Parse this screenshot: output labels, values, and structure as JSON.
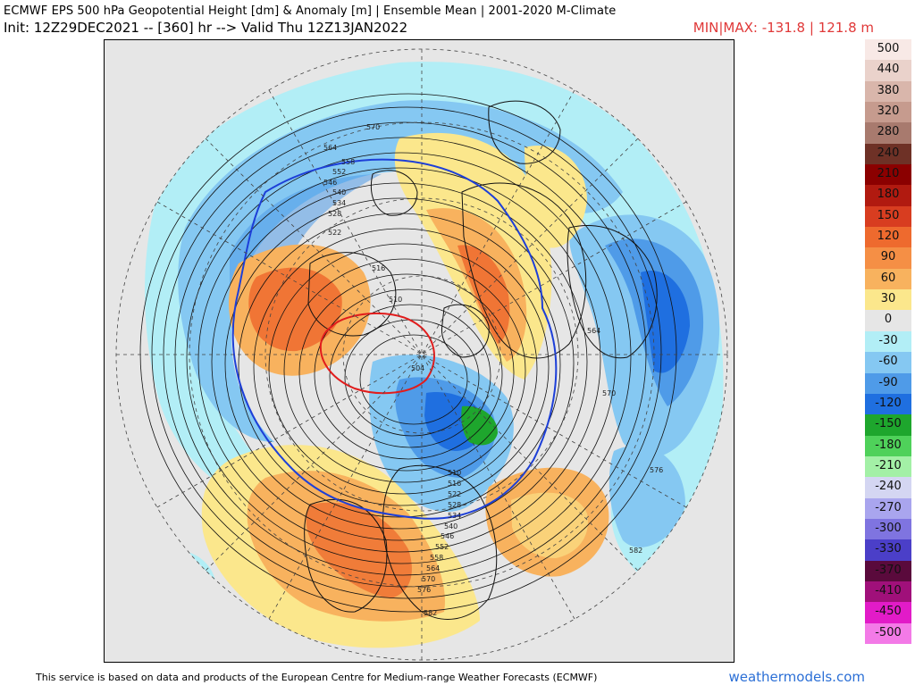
{
  "header": {
    "title": "ECMWF EPS 500 hPa Geopotential Height [dm] & Anomaly [m] | Ensemble Mean | 2001-2020 M-Climate",
    "subtitle": "Init: 12Z29DEC2021 -- [360] hr --> Valid Thu 12Z13JAN2022",
    "minmax": "MIN|MAX: -131.8 | 121.8 m"
  },
  "legend": [
    {
      "label": "500",
      "color": "#f8e9e6"
    },
    {
      "label": "440",
      "color": "#ead2cb"
    },
    {
      "label": "380",
      "color": "#d9b6ab"
    },
    {
      "label": "320",
      "color": "#c69b8e"
    },
    {
      "label": "280",
      "color": "#a87a6e"
    },
    {
      "label": "240",
      "color": "#6e3126"
    },
    {
      "label": "210",
      "color": "#8b0000"
    },
    {
      "label": "180",
      "color": "#b11a10"
    },
    {
      "label": "150",
      "color": "#d83d20"
    },
    {
      "label": "120",
      "color": "#ee6a2e"
    },
    {
      "label": "90",
      "color": "#f58f45"
    },
    {
      "label": "60",
      "color": "#f8b25e"
    },
    {
      "label": "30",
      "color": "#fbe78c"
    },
    {
      "label": "0",
      "color": "#e6e6e6"
    },
    {
      "label": "-30",
      "color": "#b2eef6"
    },
    {
      "label": "-60",
      "color": "#85c8f2"
    },
    {
      "label": "-90",
      "color": "#4f9be8"
    },
    {
      "label": "-120",
      "color": "#1f6fe0"
    },
    {
      "label": "-150",
      "color": "#1ea62d"
    },
    {
      "label": "-180",
      "color": "#4fd15a"
    },
    {
      "label": "-210",
      "color": "#a3f0a6"
    },
    {
      "label": "-240",
      "color": "#d4d6f2"
    },
    {
      "label": "-270",
      "color": "#a9a5ee"
    },
    {
      "label": "-300",
      "color": "#7f74e0"
    },
    {
      "label": "-330",
      "color": "#4b3fc8"
    },
    {
      "label": "-370",
      "color": "#5a0a3c"
    },
    {
      "label": "-410",
      "color": "#a0107a"
    },
    {
      "label": "-450",
      "color": "#e21bc8"
    },
    {
      "label": "-500",
      "color": "#f37ae7"
    }
  ],
  "contour_labels": [
    "570",
    "564",
    "558",
    "552",
    "546",
    "540",
    "534",
    "528",
    "522",
    "516",
    "510",
    "504",
    "510",
    "516",
    "522",
    "528",
    "534",
    "540",
    "546",
    "552",
    "558",
    "564",
    "570",
    "576",
    "582",
    "564",
    "570",
    "576",
    "582"
  ],
  "footer": {
    "credit": "This service is based on data and products of the European Centre for Medium-range Weather Forecasts (ECMWF)",
    "brand": "weathermodels.com"
  }
}
